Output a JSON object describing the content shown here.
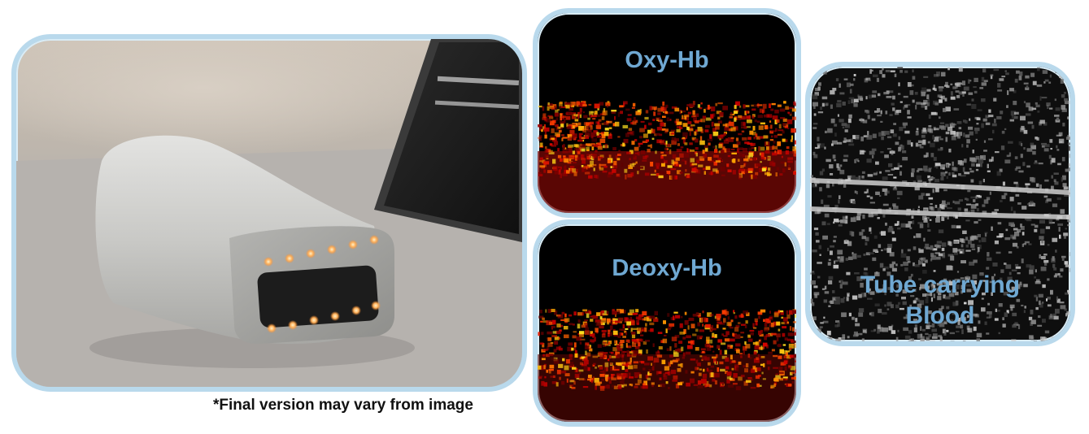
{
  "panels": {
    "oxy": {
      "title": "Oxy-Hb"
    },
    "deoxy": {
      "title": "Deoxy-Hb"
    },
    "tube": {
      "title_line1": "Tube carrying",
      "title_line2": "Blood"
    }
  },
  "caption": "*Final version may vary from image",
  "colors": {
    "border": "#b9d9ec",
    "title_text": "#6fa8d2",
    "hot_map_low": "#5a0000",
    "hot_map_high": "#ffd23a"
  }
}
